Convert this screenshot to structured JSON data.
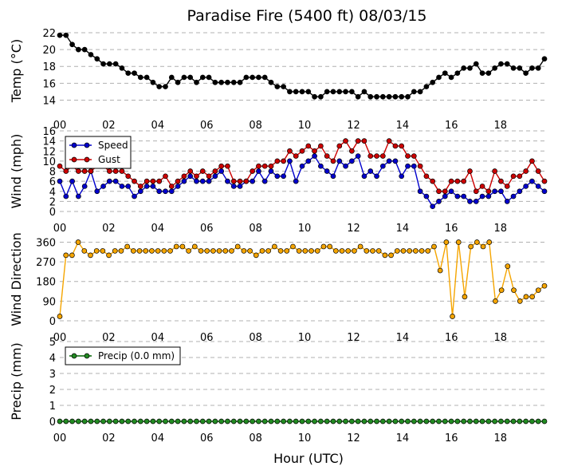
{
  "title": "Paradise Fire (5400 ft) 08/03/15",
  "xlabel": "Hour (UTC)",
  "chart_data": [
    {
      "id": "temp",
      "type": "line",
      "ylabel": "Temp (°C)",
      "ylim": [
        13,
        22
      ],
      "yticks": [
        14,
        16,
        18,
        20,
        22
      ],
      "xlim": [
        0,
        19.8
      ],
      "xticks": [
        "00",
        "02",
        "04",
        "06",
        "08",
        "10",
        "12",
        "14",
        "16",
        "18"
      ],
      "grid": true,
      "series": [
        {
          "color": "#000000",
          "marker_fill": "#000000",
          "values": [
            21.7,
            21.7,
            20.6,
            20.0,
            20.0,
            19.4,
            18.9,
            18.3,
            18.3,
            18.3,
            17.8,
            17.2,
            17.2,
            16.7,
            16.7,
            16.1,
            15.6,
            15.6,
            16.7,
            16.1,
            16.7,
            16.7,
            16.1,
            16.7,
            16.7,
            16.1,
            16.1,
            16.1,
            16.1,
            16.1,
            16.7,
            16.7,
            16.7,
            16.7,
            16.1,
            15.6,
            15.6,
            15.0,
            15.0,
            15.0,
            15.0,
            14.4,
            14.4,
            15.0,
            15.0,
            15.0,
            15.0,
            15.0,
            14.4,
            15.0,
            14.4,
            14.4,
            14.4,
            14.4,
            14.4,
            14.4,
            14.4,
            15.0,
            15.0,
            15.6,
            16.1,
            16.7,
            17.2,
            16.7,
            17.2,
            17.8,
            17.8,
            18.3,
            17.2,
            17.2,
            17.8,
            18.3,
            18.3,
            17.8,
            17.8,
            17.2,
            17.8,
            17.8,
            18.9
          ]
        }
      ]
    },
    {
      "id": "wind",
      "type": "line",
      "ylabel": "Wind (mph)",
      "ylim": [
        0,
        16
      ],
      "yticks": [
        0,
        2,
        4,
        6,
        8,
        10,
        12,
        14,
        16
      ],
      "xlim": [
        0,
        19.8
      ],
      "xticks": [
        "00",
        "02",
        "04",
        "06",
        "08",
        "10",
        "12",
        "14",
        "16",
        "18"
      ],
      "grid": true,
      "legend": "upper-left",
      "series": [
        {
          "name": "Speed",
          "color": "#0000cc",
          "marker_fill": "#0000cc",
          "values": [
            6,
            3,
            6,
            3,
            5,
            8,
            4,
            5,
            6,
            6,
            5,
            5,
            3,
            4,
            5,
            5,
            4,
            4,
            4,
            5,
            6,
            7,
            6,
            6,
            6,
            7,
            8,
            6,
            5,
            5,
            6,
            6,
            8,
            6,
            8,
            7,
            7,
            10,
            6,
            9,
            10,
            11,
            9,
            8,
            7,
            10,
            9,
            10,
            11,
            7,
            8,
            7,
            9,
            10,
            10,
            7,
            9,
            9,
            4,
            3,
            1,
            2,
            3,
            4,
            3,
            3,
            2,
            2,
            3,
            3,
            4,
            4,
            2,
            3,
            4,
            5,
            6,
            5,
            4
          ]
        },
        {
          "name": "Gust",
          "color": "#cc0000",
          "marker_fill": "#cc0000",
          "values": [
            9,
            8,
            9,
            8,
            8,
            8,
            9,
            9,
            8,
            8,
            8,
            7,
            6,
            5,
            6,
            6,
            6,
            7,
            5,
            6,
            7,
            8,
            7,
            8,
            7,
            8,
            9,
            9,
            6,
            6,
            6,
            8,
            9,
            9,
            9,
            10,
            10,
            12,
            11,
            12,
            13,
            12,
            13,
            11,
            10,
            13,
            14,
            12,
            14,
            14,
            11,
            11,
            11,
            14,
            13,
            13,
            11,
            11,
            9,
            7,
            6,
            4,
            4,
            6,
            6,
            6,
            8,
            4,
            5,
            4,
            8,
            6,
            5,
            7,
            7,
            8,
            10,
            8,
            6
          ]
        }
      ]
    },
    {
      "id": "direction",
      "type": "line",
      "ylabel": "Wind Direction",
      "ylim": [
        0,
        380
      ],
      "yticks": [
        0,
        90,
        180,
        270,
        360
      ],
      "xlim": [
        0,
        19.8
      ],
      "xticks": [
        "00",
        "02",
        "04",
        "06",
        "08",
        "10",
        "12",
        "14",
        "16",
        "18"
      ],
      "grid": true,
      "series": [
        {
          "color": "#f5a500",
          "marker_fill": "#f5a500",
          "values": [
            20,
            300,
            300,
            360,
            320,
            300,
            320,
            320,
            300,
            320,
            320,
            340,
            320,
            320,
            320,
            320,
            320,
            320,
            320,
            340,
            340,
            320,
            340,
            320,
            320,
            320,
            320,
            320,
            320,
            340,
            320,
            320,
            300,
            320,
            320,
            340,
            320,
            320,
            340,
            320,
            320,
            320,
            320,
            340,
            340,
            320,
            320,
            320,
            320,
            340,
            320,
            320,
            320,
            300,
            300,
            320,
            320,
            320,
            320,
            320,
            320,
            340,
            230,
            360,
            20,
            360,
            110,
            340,
            360,
            340,
            360,
            90,
            140,
            250,
            140,
            90,
            110,
            110,
            140,
            160
          ]
        }
      ]
    },
    {
      "id": "precip",
      "type": "line",
      "ylabel": "Precip (mm)",
      "ylim": [
        0,
        5
      ],
      "yticks": [
        0,
        1,
        2,
        3,
        4,
        5
      ],
      "xlim": [
        0,
        19.8
      ],
      "xticks": [
        "00",
        "02",
        "04",
        "06",
        "08",
        "10",
        "12",
        "14",
        "16",
        "18"
      ],
      "grid": true,
      "legend": "upper-left",
      "series": [
        {
          "name": "Precip (0.0 mm)",
          "color": "#006400",
          "marker_fill": "#228b22",
          "values": [
            0,
            0,
            0,
            0,
            0,
            0,
            0,
            0,
            0,
            0,
            0,
            0,
            0,
            0,
            0,
            0,
            0,
            0,
            0,
            0,
            0,
            0,
            0,
            0,
            0,
            0,
            0,
            0,
            0,
            0,
            0,
            0,
            0,
            0,
            0,
            0,
            0,
            0,
            0,
            0,
            0,
            0,
            0,
            0,
            0,
            0,
            0,
            0,
            0,
            0,
            0,
            0,
            0,
            0,
            0,
            0,
            0,
            0,
            0,
            0,
            0,
            0,
            0,
            0,
            0,
            0,
            0,
            0,
            0,
            0,
            0,
            0,
            0,
            0,
            0,
            0,
            0,
            0,
            0
          ]
        }
      ]
    }
  ]
}
